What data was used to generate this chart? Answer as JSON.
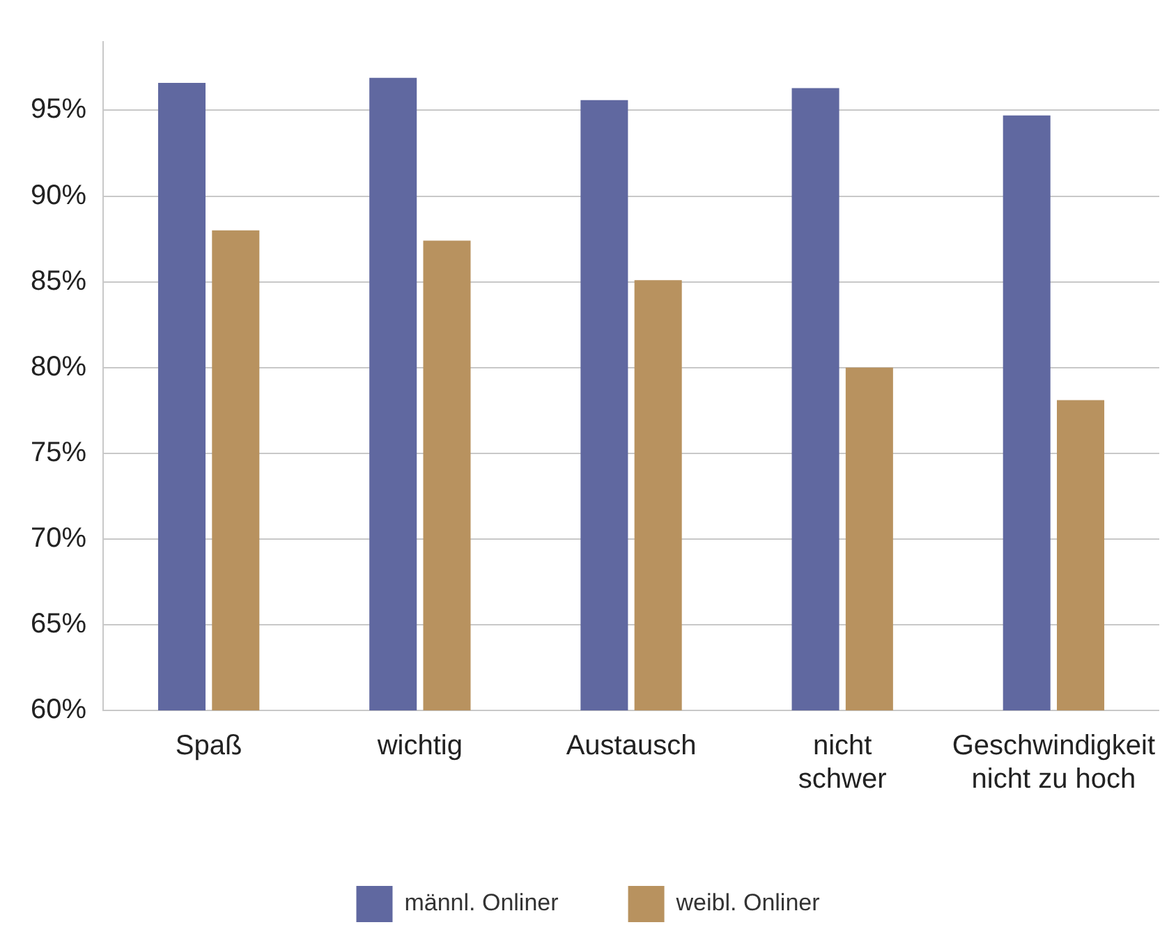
{
  "chart_data": {
    "type": "bar",
    "categories": [
      "Spaß",
      "wichtig",
      "Austausch",
      "nicht schwer",
      "Geschwindigkeit nicht zu hoch"
    ],
    "series": [
      {
        "name": "männl. Onliner",
        "color": "#6068a0",
        "values": [
          96.6,
          96.9,
          95.6,
          96.3,
          94.7
        ]
      },
      {
        "name": "weibl. Onliner",
        "color": "#b8925f",
        "values": [
          88.0,
          87.4,
          85.1,
          80.0,
          78.1
        ]
      }
    ],
    "yticks": [
      {
        "value": 60,
        "label": "60%"
      },
      {
        "value": 65,
        "label": "65%"
      },
      {
        "value": 70,
        "label": "70%"
      },
      {
        "value": 75,
        "label": "75%"
      },
      {
        "value": 80,
        "label": "80%"
      },
      {
        "value": 85,
        "label": "85%"
      },
      {
        "value": 90,
        "label": "90%"
      },
      {
        "value": 95,
        "label": "95%"
      }
    ],
    "ylim": [
      60,
      99
    ],
    "grid": "y",
    "legend": "bottom"
  }
}
